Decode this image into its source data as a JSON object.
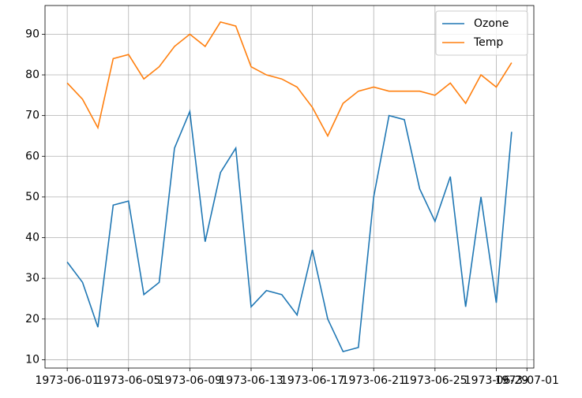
{
  "chart_data": {
    "type": "line",
    "x": [
      "1973-06-01",
      "1973-06-02",
      "1973-06-03",
      "1973-06-04",
      "1973-06-05",
      "1973-06-06",
      "1973-06-07",
      "1973-06-08",
      "1973-06-09",
      "1973-06-10",
      "1973-06-11",
      "1973-06-12",
      "1973-06-13",
      "1973-06-14",
      "1973-06-15",
      "1973-06-16",
      "1973-06-17",
      "1973-06-18",
      "1973-06-19",
      "1973-06-20",
      "1973-06-21",
      "1973-06-22",
      "1973-06-23",
      "1973-06-24",
      "1973-06-25",
      "1973-06-26",
      "1973-06-27",
      "1973-06-28",
      "1973-06-29",
      "1973-06-30"
    ],
    "series": [
      {
        "name": "Ozone",
        "color": "#1f77b4",
        "values": [
          34,
          29,
          18,
          48,
          49,
          26,
          29,
          62,
          71,
          39,
          56,
          62,
          23,
          27,
          26,
          21,
          37,
          20,
          12,
          13,
          50,
          70,
          69,
          52,
          44,
          55,
          23,
          50,
          24,
          66
        ]
      },
      {
        "name": "Temp",
        "color": "#ff7f0e",
        "values": [
          78,
          74,
          67,
          84,
          85,
          79,
          82,
          87,
          90,
          87,
          93,
          92,
          82,
          80,
          79,
          77,
          72,
          65,
          73,
          76,
          77,
          76,
          76,
          76,
          75,
          78,
          73,
          80,
          77,
          83
        ]
      }
    ],
    "xlim": [
      "1973-05-30T13:12:00Z",
      "1973-07-01T10:48:00Z"
    ],
    "xticks": [
      "1973-06-01",
      "1973-06-05",
      "1973-06-09",
      "1973-06-13",
      "1973-06-17",
      "1973-06-21",
      "1973-06-25",
      "1973-06-29",
      "1973-07-01"
    ],
    "ylim": [
      7.95,
      97.05
    ],
    "yticks": [
      10,
      20,
      30,
      40,
      50,
      60,
      70,
      80,
      90
    ],
    "grid": true,
    "legend": "upper right"
  }
}
